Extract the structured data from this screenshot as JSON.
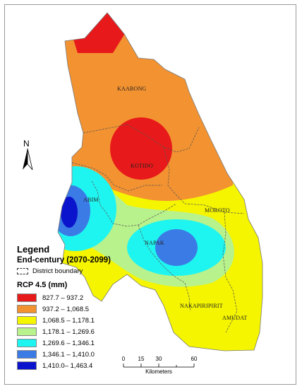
{
  "legend": {
    "title": "Legend",
    "period": "End-century (2070-2099)",
    "boundary_label": "District boundary",
    "variable": "RCP 4.5 (mm)",
    "classes": [
      {
        "label": "827.7 – 937.2",
        "color": "#e8191a"
      },
      {
        "label": "937.2 – 1,068.5",
        "color": "#f39231"
      },
      {
        "label": "1,068.5 – 1,178.1",
        "color": "#f5f500"
      },
      {
        "label": "1,178.1 – 1,269.6",
        "color": "#b8f28c"
      },
      {
        "label": "1,269.6 – 1,346.1",
        "color": "#1ff5f0"
      },
      {
        "label": "1,346.1 – 1,410.0",
        "color": "#3b7be5"
      },
      {
        "label": "1,410.0– 1,463.4",
        "color": "#0a14cc"
      }
    ]
  },
  "districts": [
    "KAABONG",
    "KOTIDO",
    "ABIM",
    "MOROTO",
    "NAPAK",
    "NAKAPIRIPIRIT",
    "AMUDAT"
  ],
  "north_arrow": {
    "letter": "N"
  },
  "scale_bar": {
    "ticks": [
      "0",
      "15",
      "30",
      "60"
    ],
    "unit": "Kilometers"
  }
}
